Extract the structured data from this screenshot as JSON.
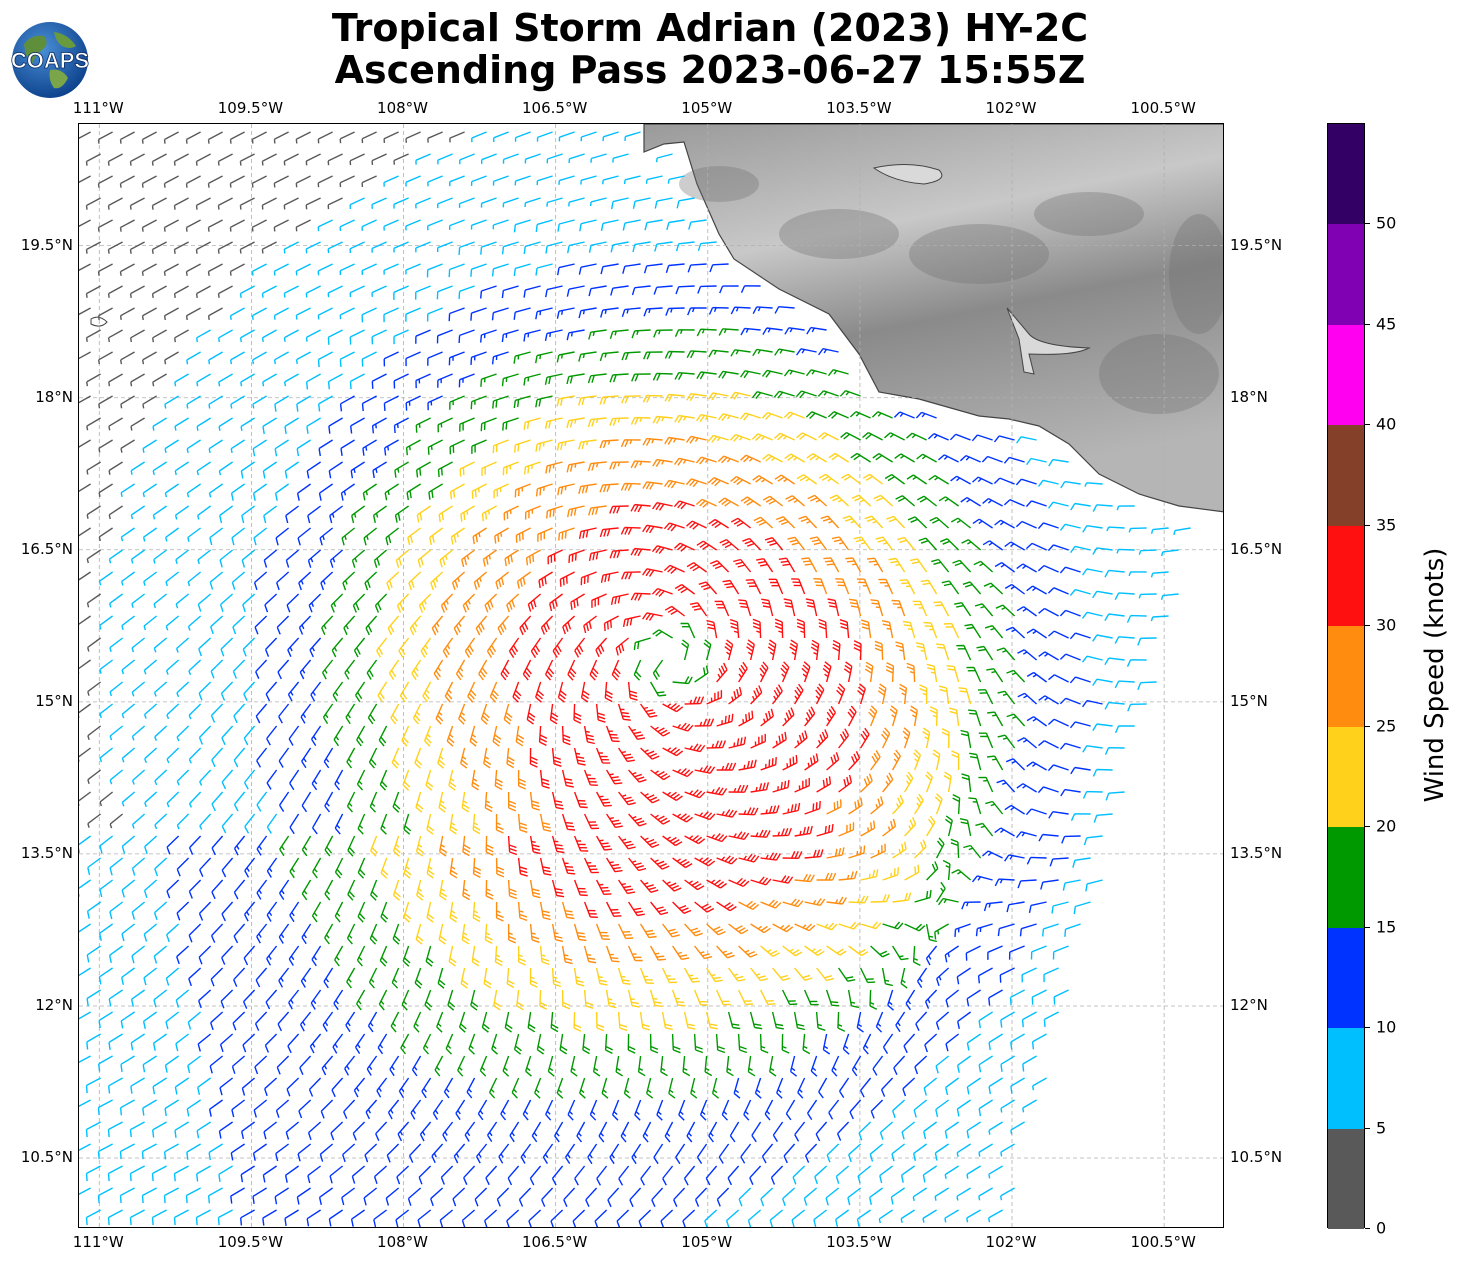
{
  "title_line1": "Tropical Storm Adrian (2023) HY-2C",
  "title_line2": "Ascending Pass 2023-06-27 15:55Z",
  "logo_text": "COAPS",
  "map": {
    "lon_range": [
      -111.2,
      -99.9
    ],
    "lat_range": [
      9.8,
      20.7
    ],
    "lon_ticks": [
      {
        "value": -111.0,
        "label": "111°W"
      },
      {
        "value": -109.5,
        "label": "109.5°W"
      },
      {
        "value": -108.0,
        "label": "108°W"
      },
      {
        "value": -106.5,
        "label": "106.5°W"
      },
      {
        "value": -105.0,
        "label": "105°W"
      },
      {
        "value": -103.5,
        "label": "103.5°W"
      },
      {
        "value": -102.0,
        "label": "102°W"
      },
      {
        "value": -100.5,
        "label": "100.5°W"
      }
    ],
    "lat_ticks": [
      {
        "value": 19.5,
        "label": "19.5°N"
      },
      {
        "value": 18.0,
        "label": "18°N"
      },
      {
        "value": 16.5,
        "label": "16.5°N"
      },
      {
        "value": 15.0,
        "label": "15°N"
      },
      {
        "value": 13.5,
        "label": "13.5°N"
      },
      {
        "value": 12.0,
        "label": "12°N"
      },
      {
        "value": 10.5,
        "label": "10.5°N"
      }
    ],
    "storm_center": {
      "lon": -105.4,
      "lat": 15.4
    },
    "max_wind_knots": 35,
    "grid": "dashed"
  },
  "colorbar": {
    "label": "Wind Speed (knots)",
    "bins": [
      {
        "min": 0,
        "max": 5,
        "color": "#595959"
      },
      {
        "min": 5,
        "max": 10,
        "color": "#00bfff"
      },
      {
        "min": 10,
        "max": 15,
        "color": "#0033ff"
      },
      {
        "min": 15,
        "max": 20,
        "color": "#009900"
      },
      {
        "min": 20,
        "max": 25,
        "color": "#ffd11a"
      },
      {
        "min": 25,
        "max": 30,
        "color": "#ff8c0f"
      },
      {
        "min": 30,
        "max": 35,
        "color": "#ff1010"
      },
      {
        "min": 35,
        "max": 40,
        "color": "#85402a"
      },
      {
        "min": 40,
        "max": 45,
        "color": "#ff00f0"
      },
      {
        "min": 45,
        "max": 50,
        "color": "#8000b3"
      },
      {
        "min": 50,
        "max": 55,
        "color": "#330066"
      }
    ],
    "ticks": [
      {
        "value": 0,
        "label": "0"
      },
      {
        "value": 5,
        "label": "5"
      },
      {
        "value": 10,
        "label": "10"
      },
      {
        "value": 15,
        "label": "15"
      },
      {
        "value": 20,
        "label": "20"
      },
      {
        "value": 25,
        "label": "25"
      },
      {
        "value": 30,
        "label": "30"
      },
      {
        "value": 35,
        "label": "35"
      },
      {
        "value": 40,
        "label": "40"
      },
      {
        "value": 45,
        "label": "45"
      },
      {
        "value": 50,
        "label": "50"
      }
    ]
  }
}
